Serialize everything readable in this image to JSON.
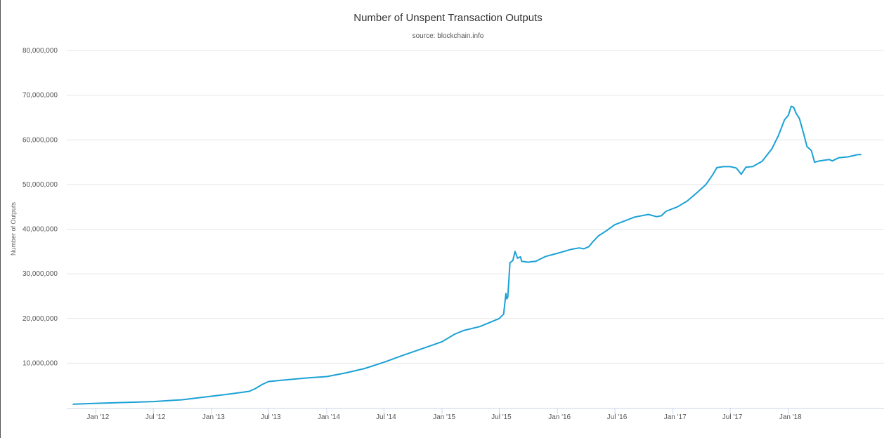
{
  "chart_data": {
    "type": "line",
    "title": "Number of Unspent Transaction Outputs",
    "subtitle": "source: blockchain.info",
    "xlabel": "",
    "ylabel": "Number of Outputs",
    "ylim": [
      0,
      80000000
    ],
    "xlim": [
      "2011-10-01",
      "2018-10-31"
    ],
    "grid": true,
    "legend": "none",
    "colors": {
      "line": "#1ba1d6",
      "grid": "#e6e6e6",
      "axis": "#ccd6eb"
    },
    "y_ticks": [
      {
        "value": 10000000,
        "label": "10,000,000"
      },
      {
        "value": 20000000,
        "label": "20,000,000"
      },
      {
        "value": 30000000,
        "label": "30,000,000"
      },
      {
        "value": 40000000,
        "label": "40,000,000"
      },
      {
        "value": 50000000,
        "label": "50,000,000"
      },
      {
        "value": 60000000,
        "label": "60,000,000"
      },
      {
        "value": 70000000,
        "label": "70,000,000"
      },
      {
        "value": 80000000,
        "label": "80,000,000"
      }
    ],
    "x_ticks": [
      {
        "value": "2012-01-01",
        "label": "Jan '12"
      },
      {
        "value": "2012-07-01",
        "label": "Jul '12"
      },
      {
        "value": "2013-01-01",
        "label": "Jan '13"
      },
      {
        "value": "2013-07-01",
        "label": "Jul '13"
      },
      {
        "value": "2014-01-01",
        "label": "Jan '14"
      },
      {
        "value": "2014-07-01",
        "label": "Jul '14"
      },
      {
        "value": "2015-01-01",
        "label": "Jan '15"
      },
      {
        "value": "2015-07-01",
        "label": "Jul '15"
      },
      {
        "value": "2016-01-01",
        "label": "Jan '16"
      },
      {
        "value": "2016-07-01",
        "label": "Jul '16"
      },
      {
        "value": "2017-01-01",
        "label": "Jan '17"
      },
      {
        "value": "2017-07-01",
        "label": "Jul '17"
      },
      {
        "value": "2018-01-01",
        "label": "Jan '18"
      }
    ],
    "series": [
      {
        "x": [
          "2011-10-20",
          "2012-01-01",
          "2012-04-01",
          "2012-07-01",
          "2012-10-01",
          "2013-01-01",
          "2013-03-01",
          "2013-05-01",
          "2013-05-20",
          "2013-06-10",
          "2013-07-01",
          "2013-09-01",
          "2013-11-01",
          "2014-01-01",
          "2014-03-01",
          "2014-05-01",
          "2014-07-01",
          "2014-09-01",
          "2014-11-01",
          "2015-01-01",
          "2015-02-10",
          "2015-03-10",
          "2015-05-01",
          "2015-07-01",
          "2015-07-15",
          "2015-07-22",
          "2015-07-25",
          "2015-07-28",
          "2015-08-01",
          "2015-08-04",
          "2015-08-06",
          "2015-08-10",
          "2015-08-13",
          "2015-08-20",
          "2015-08-28",
          "2015-09-02",
          "2015-09-06",
          "2015-09-10",
          "2015-09-20",
          "2015-10-01",
          "2015-10-10",
          "2015-10-25",
          "2015-11-10",
          "2015-11-25",
          "2016-01-01",
          "2016-02-15",
          "2016-03-10",
          "2016-03-25",
          "2016-04-10",
          "2016-04-20",
          "2016-05-10",
          "2016-06-01",
          "2016-07-01",
          "2016-09-01",
          "2016-10-15",
          "2016-11-10",
          "2016-11-25",
          "2016-12-10",
          "2017-01-15",
          "2017-02-15",
          "2017-03-15",
          "2017-04-15",
          "2017-05-05",
          "2017-05-20",
          "2017-06-10",
          "2017-07-01",
          "2017-07-20",
          "2017-08-05",
          "2017-08-20",
          "2017-09-10",
          "2017-10-10",
          "2017-11-10",
          "2017-12-01",
          "2017-12-20",
          "2018-01-01",
          "2018-01-10",
          "2018-01-18",
          "2018-01-25",
          "2018-02-05",
          "2018-02-18",
          "2018-03-01",
          "2018-03-15",
          "2018-03-25",
          "2018-04-10",
          "2018-05-10",
          "2018-05-20",
          "2018-06-10",
          "2018-07-10",
          "2018-08-10",
          "2018-08-20"
        ],
        "y": [
          800000,
          1000000,
          1200000,
          1400000,
          1800000,
          2600000,
          3100000,
          3700000,
          4300000,
          5200000,
          5900000,
          6300000,
          6700000,
          7000000,
          7800000,
          8800000,
          10200000,
          11800000,
          13300000,
          14800000,
          16500000,
          17300000,
          18200000,
          20000000,
          21000000,
          25600000,
          24400000,
          24800000,
          29300000,
          32500000,
          32600000,
          32800000,
          33000000,
          35000000,
          33500000,
          33700000,
          33800000,
          32800000,
          32700000,
          32600000,
          32700000,
          32800000,
          33400000,
          33900000,
          34600000,
          35500000,
          35800000,
          35600000,
          36100000,
          37000000,
          38500000,
          39500000,
          41000000,
          42700000,
          43300000,
          42800000,
          43000000,
          44000000,
          45000000,
          46300000,
          48000000,
          50000000,
          52000000,
          53800000,
          54000000,
          54000000,
          53700000,
          52300000,
          53900000,
          54000000,
          55200000,
          58000000,
          61000000,
          64500000,
          65500000,
          67500000,
          67300000,
          66000000,
          64800000,
          61500000,
          58500000,
          57600000,
          55000000,
          55300000,
          55600000,
          55300000,
          56000000,
          56200000,
          56700000,
          56700000
        ]
      }
    ]
  }
}
